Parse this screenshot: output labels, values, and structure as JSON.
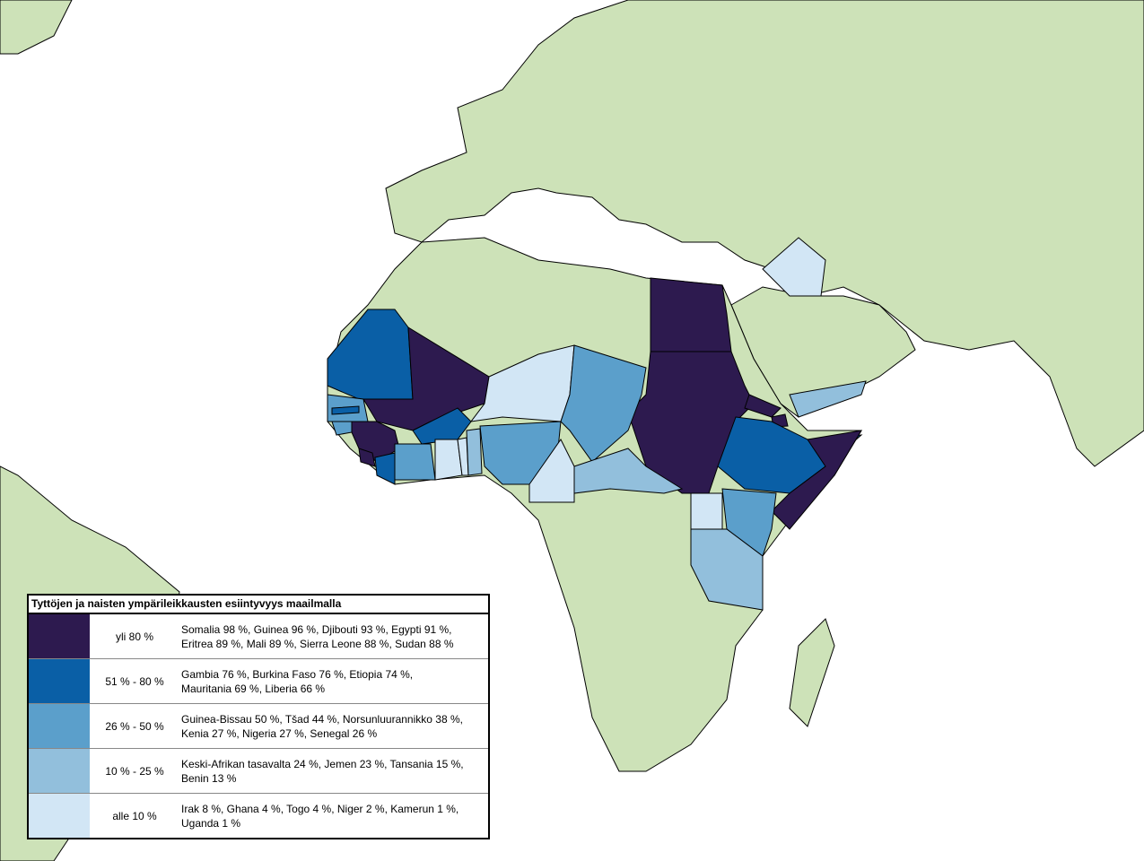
{
  "legend": {
    "title": "Tyttöjen ja naisten ympärileikkausten esiintyvyys maailmalla",
    "rows": [
      {
        "range": "yli 80 %",
        "color": "#2d1a4f",
        "lines": [
          "Somalia 98 %, Guinea 96 %, Djibouti 93 %, Egypti 91 %,",
          "Eritrea 89 %, Mali 89 %, Sierra Leone 88 %, Sudan 88 %"
        ]
      },
      {
        "range": "51 % - 80 %",
        "color": "#0a5fa6",
        "lines": [
          "Gambia 76 %, Burkina Faso 76 %, Etiopia 74 %,",
          "Mauritania 69 %, Liberia 66 %"
        ]
      },
      {
        "range": "26 % - 50 %",
        "color": "#5b9fcb",
        "lines": [
          "Guinea-Bissau 50 %, Tšad 44 %, Norsunluurannikko 38 %,",
          "Kenia 27 %, Nigeria 27 %, Senegal 26 %"
        ]
      },
      {
        "range": "10 % - 25 %",
        "color": "#92bfdc",
        "lines": [
          "Keski-Afrikan tasavalta 24 %, Jemen 23 %, Tansania 15 %,",
          "Benin 13 %"
        ]
      },
      {
        "range": "alle 10 %",
        "color": "#d2e6f5",
        "lines": [
          "Irak 8 %, Ghana 4 %, Togo 4 %, Niger 2 %, Kamerun 1 %,",
          "Uganda 1 %"
        ]
      }
    ]
  }
}
